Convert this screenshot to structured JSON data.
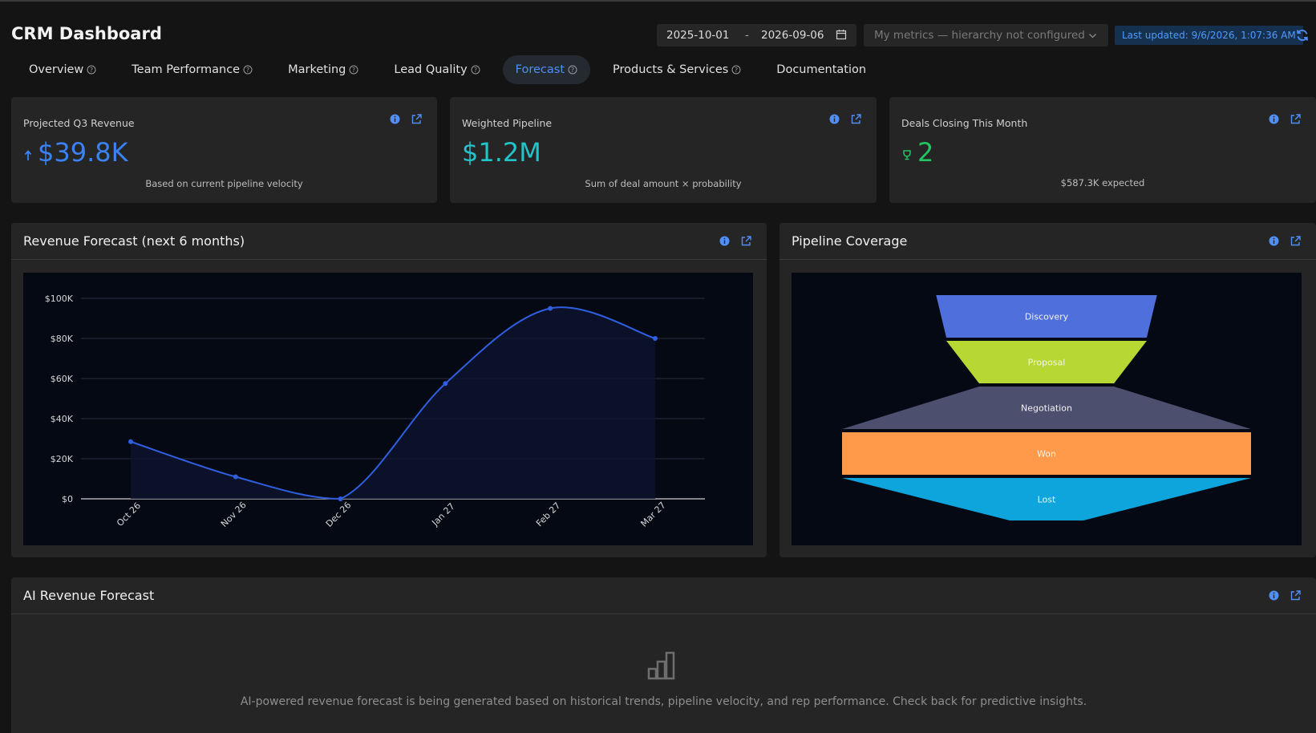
{
  "header": {
    "title": "CRM Dashboard",
    "date_start": "2025-10-01",
    "date_sep": "-",
    "date_end": "2026-09-06",
    "metrics_select": "My metrics — hierarchy not configured",
    "last_updated": "Last updated: 9/6/2026, 1:07:36 AM"
  },
  "tabs": [
    {
      "label": "Overview",
      "help": true,
      "active": false
    },
    {
      "label": "Team Performance",
      "help": true,
      "active": false
    },
    {
      "label": "Marketing",
      "help": true,
      "active": false
    },
    {
      "label": "Lead Quality",
      "help": true,
      "active": false
    },
    {
      "label": "Forecast",
      "help": true,
      "active": true
    },
    {
      "label": "Products & Services",
      "help": true,
      "active": false
    },
    {
      "label": "Documentation",
      "help": false,
      "active": false
    }
  ],
  "kpis": [
    {
      "label": "Projected Q3 Revenue",
      "value": "$39.8K",
      "sub": "Based on current pipeline velocity",
      "color": "#3b82f6",
      "icon": "arrow-up-icon"
    },
    {
      "label": "Weighted Pipeline",
      "value": "$1.2M",
      "sub": "Sum of deal amount × probability",
      "color": "#22c3c9",
      "icon": ""
    },
    {
      "label": "Deals Closing This Month",
      "value": "2",
      "sub": "$587.3K expected",
      "color": "#22c55e",
      "icon": "trophy-icon"
    }
  ],
  "revenue_panel": {
    "title": "Revenue Forecast (next 6 months)"
  },
  "pipeline_panel": {
    "title": "Pipeline Coverage"
  },
  "ai_panel": {
    "title": "AI Revenue Forecast",
    "message": "AI-powered revenue forecast is being generated based on historical trends, pipeline velocity, and rep performance. Check back for predictive insights."
  },
  "colors": {
    "accent": "#4f8ff7",
    "line": "#2f5fe0",
    "discovery": "#4f6fdc",
    "proposal": "#b7d733",
    "negotiation": "#4c4f6e",
    "won": "#ff9a4a",
    "lost": "#0ea5dc"
  },
  "chart_data": [
    {
      "type": "line",
      "title": "Revenue Forecast (next 6 months)",
      "categories": [
        "Oct 26",
        "Nov 26",
        "Dec 26",
        "Jan 27",
        "Feb 27",
        "Mar 27"
      ],
      "values": [
        28500,
        11000,
        0,
        57500,
        95000,
        80000
      ],
      "ylim": [
        0,
        100000
      ],
      "yticks": [
        "$0",
        "$20K",
        "$40K",
        "$60K",
        "$80K",
        "$100K"
      ],
      "grid": true,
      "smooth": true
    },
    {
      "type": "funnel",
      "title": "Pipeline Coverage",
      "categories": [
        "Discovery",
        "Proposal",
        "Negotiation",
        "Won",
        "Lost"
      ],
      "widths": [
        0.54,
        0.49,
        0.33,
        1.0,
        0.18
      ]
    }
  ]
}
